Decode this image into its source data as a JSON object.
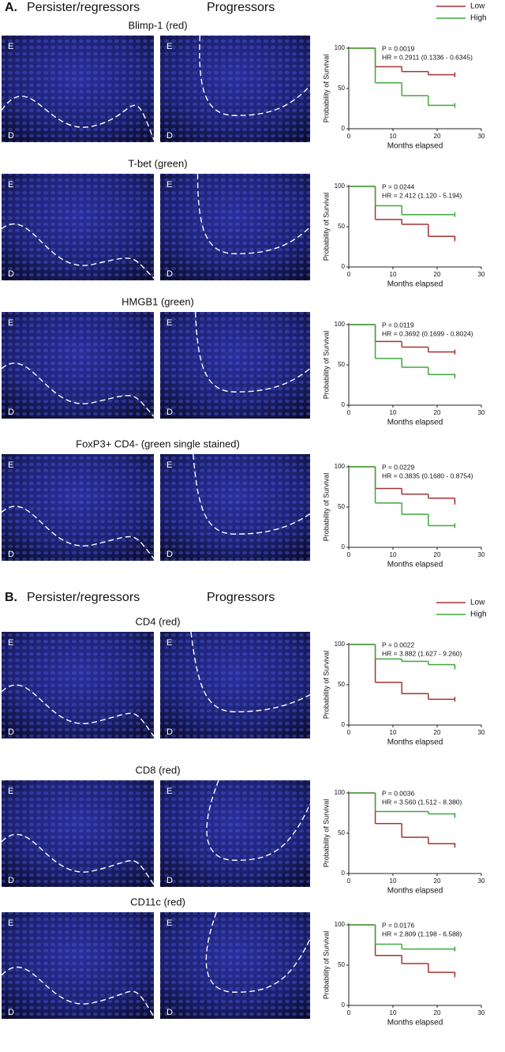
{
  "sections": [
    {
      "label": "A.",
      "left_group": "Persister/regressors",
      "right_group": "Progressors"
    },
    {
      "label": "B.",
      "left_group": "Persister/regressors",
      "right_group": "Progressors"
    }
  ],
  "panels": [
    {
      "title": "Blimp-1 (red)",
      "images": [
        {
          "top": "E",
          "bottom": "D"
        },
        {
          "top": "E",
          "bottom": "D"
        }
      ]
    },
    {
      "title": "T-bet (green)",
      "images": [
        {
          "top": "E",
          "bottom": "D"
        },
        {
          "top": "E",
          "bottom": "D"
        }
      ]
    },
    {
      "title": "HMGB1 (green)",
      "images": [
        {
          "top": "E",
          "bottom": "D"
        },
        {
          "top": "E",
          "bottom": "D"
        }
      ]
    },
    {
      "title": "FoxP3+ CD4- (green single stained)",
      "images": [
        {
          "top": "E",
          "bottom": "D"
        },
        {
          "top": "E",
          "bottom": "D"
        }
      ]
    },
    {
      "title": "CD4 (red)",
      "images": [
        {
          "top": "E",
          "bottom": "D"
        },
        {
          "top": "E",
          "bottom": "D"
        }
      ]
    },
    {
      "title": "CD8 (red)",
      "images": [
        {
          "top": "E",
          "bottom": "D"
        },
        {
          "top": "E",
          "bottom": "D"
        }
      ]
    },
    {
      "title": "CD11c (red)",
      "images": [
        {
          "top": "E",
          "bottom": "D"
        },
        {
          "top": "E",
          "bottom": "D"
        }
      ]
    }
  ],
  "chart_data": [
    {
      "type": "step",
      "x": [
        0,
        6,
        12,
        18,
        24
      ],
      "legend": true,
      "series": [
        {
          "name": "Low",
          "color": "#a83232",
          "values": [
            100,
            77,
            71,
            67,
            67
          ]
        },
        {
          "name": "High",
          "color": "#3daa3d",
          "values": [
            100,
            57,
            41,
            29,
            29
          ]
        }
      ],
      "xlim": [
        0,
        30
      ],
      "xticks": [
        0,
        10,
        20,
        30
      ],
      "ylim": [
        0,
        100
      ],
      "yticks": [
        0,
        50,
        100
      ],
      "xlabel": "Months elapsed",
      "ylabel": "Probability of Survival",
      "annotations": [
        "P = 0.0019",
        "HR = 0.2911 (0.1336 - 0.6345)"
      ]
    },
    {
      "type": "step",
      "x": [
        0,
        6,
        12,
        18,
        24
      ],
      "legend": false,
      "series": [
        {
          "name": "Low",
          "color": "#a83232",
          "values": [
            100,
            59,
            53,
            38,
            35
          ]
        },
        {
          "name": "High",
          "color": "#3daa3d",
          "values": [
            100,
            76,
            65,
            65,
            65
          ]
        }
      ],
      "xlim": [
        0,
        30
      ],
      "xticks": [
        0,
        10,
        20,
        30
      ],
      "ylim": [
        0,
        100
      ],
      "yticks": [
        0,
        50,
        100
      ],
      "xlabel": "Months elapsed",
      "ylabel": "Probability of Survival",
      "annotations": [
        "P = 0.0244",
        "HR = 2.412 (1.120 - 5.194)"
      ]
    },
    {
      "type": "step",
      "x": [
        0,
        6,
        12,
        18,
        24
      ],
      "legend": false,
      "series": [
        {
          "name": "Low",
          "color": "#a83232",
          "values": [
            100,
            79,
            72,
            66,
            66
          ]
        },
        {
          "name": "High",
          "color": "#3daa3d",
          "values": [
            100,
            58,
            47,
            38,
            36
          ]
        }
      ],
      "xlim": [
        0,
        30
      ],
      "xticks": [
        0,
        10,
        20,
        30
      ],
      "ylim": [
        0,
        100
      ],
      "yticks": [
        0,
        50,
        100
      ],
      "xlabel": "Months elapsed",
      "ylabel": "Probability of Survival",
      "annotations": [
        "P = 0.0119",
        "HR = 0.3692 (0.1699 - 0.8024)"
      ]
    },
    {
      "type": "step",
      "x": [
        0,
        6,
        12,
        18,
        24
      ],
      "legend": false,
      "series": [
        {
          "name": "Low",
          "color": "#a83232",
          "values": [
            100,
            73,
            66,
            61,
            56
          ]
        },
        {
          "name": "High",
          "color": "#3daa3d",
          "values": [
            100,
            55,
            41,
            27,
            27
          ]
        }
      ],
      "xlim": [
        0,
        30
      ],
      "xticks": [
        0,
        10,
        20,
        30
      ],
      "ylim": [
        0,
        100
      ],
      "yticks": [
        0,
        50,
        100
      ],
      "xlabel": "Months elapsed",
      "ylabel": "Probability of Survival",
      "annotations": [
        "P = 0.0229",
        "HR = 0.3835 (0.1680 - 0.8754)"
      ]
    },
    {
      "type": "step",
      "x": [
        0,
        6,
        12,
        18,
        24
      ],
      "legend": true,
      "series": [
        {
          "name": "Low",
          "color": "#a83232",
          "values": [
            100,
            53,
            39,
            32,
            32
          ]
        },
        {
          "name": "High",
          "color": "#3daa3d",
          "values": [
            100,
            82,
            79,
            75,
            72
          ]
        }
      ],
      "xlim": [
        0,
        30
      ],
      "xticks": [
        0,
        10,
        20,
        30
      ],
      "ylim": [
        0,
        100
      ],
      "yticks": [
        0,
        50,
        100
      ],
      "xlabel": "Months elapsed",
      "ylabel": "Probability of Survival",
      "annotations": [
        "P = 0.0022",
        "HR = 3.882 (1.627 - 9.260)"
      ]
    },
    {
      "type": "step",
      "x": [
        0,
        6,
        12,
        18,
        24
      ],
      "legend": false,
      "series": [
        {
          "name": "Low",
          "color": "#a83232",
          "values": [
            100,
            62,
            45,
            37,
            35
          ]
        },
        {
          "name": "High",
          "color": "#3daa3d",
          "values": [
            100,
            77,
            77,
            74,
            72
          ]
        }
      ],
      "xlim": [
        0,
        30
      ],
      "xticks": [
        0,
        10,
        20,
        30
      ],
      "ylim": [
        0,
        100
      ],
      "yticks": [
        0,
        50,
        100
      ],
      "xlabel": "Months elapsed",
      "ylabel": "Probability of Survival",
      "annotations": [
        "P = 0.0036",
        "HR = 3.560 (1.512 - 8.380)"
      ]
    },
    {
      "type": "step",
      "x": [
        0,
        6,
        12,
        18,
        24
      ],
      "legend": false,
      "series": [
        {
          "name": "Low",
          "color": "#a83232",
          "values": [
            100,
            62,
            52,
            41,
            38
          ]
        },
        {
          "name": "High",
          "color": "#3daa3d",
          "values": [
            100,
            76,
            70,
            70,
            70
          ]
        }
      ],
      "xlim": [
        0,
        30
      ],
      "xticks": [
        0,
        10,
        20,
        30
      ],
      "ylim": [
        0,
        100
      ],
      "yticks": [
        0,
        50,
        100
      ],
      "xlabel": "Months elapsed",
      "ylabel": "Probability of Survival",
      "annotations": [
        "P = 0.0176",
        "HR = 2.809 (1.198 - 6.588)"
      ]
    }
  ]
}
